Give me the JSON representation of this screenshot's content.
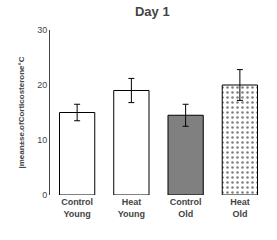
{
  "chart_data": {
    "type": "bar",
    "title": "Day 1",
    "ylabel": "|mean±se.ofCorticosterone°C",
    "categories": [
      "Control\nYoung",
      "Heat\nYoung",
      "Control\nOld",
      "Heat\nOld"
    ],
    "values": [
      15.0,
      19.0,
      14.5,
      20.0
    ],
    "errors": [
      1.5,
      2.2,
      2.0,
      2.8
    ],
    "colors": [
      "white",
      "white",
      "#808080",
      "#808080"
    ],
    "ylim": [
      0,
      30
    ],
    "yticks": [
      0,
      10,
      20,
      30
    ],
    "grid": false
  }
}
